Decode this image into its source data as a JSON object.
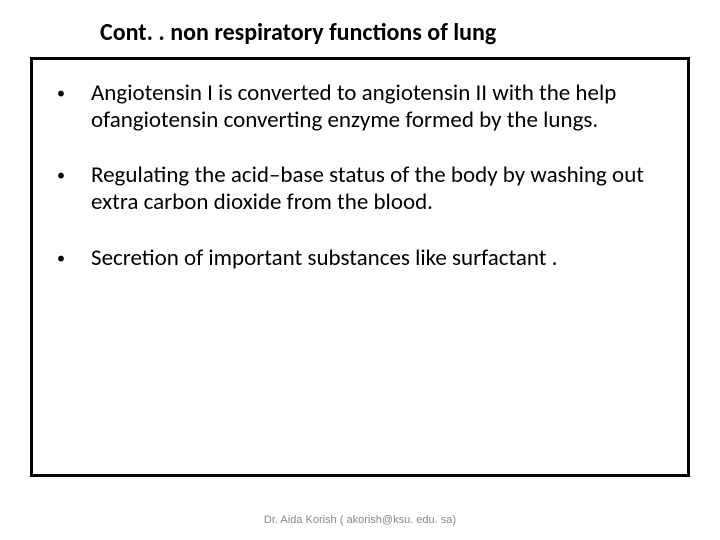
{
  "slide": {
    "title": "Cont. . non respiratory functions of lung",
    "title_fontsize": 24,
    "title_color": "#000000",
    "bullets": [
      "Angiotensin I is converted to angiotensin II with the help   ofangiotensin converting enzyme formed by the lungs.",
      "Regulating the acid–base status of the body by washing out extra carbon dioxide from the blood.",
      "Secretion of important substances like surfactant ."
    ],
    "bullet_fontsize": 23,
    "bullet_color": "#000000",
    "bullet_marker": "•",
    "footer": "Dr. Aida Korish ( akorish@ksu. edu. sa)",
    "footer_fontsize": 11,
    "footer_color": "#888888",
    "background_color": "#ffffff",
    "border_color": "#000000"
  }
}
